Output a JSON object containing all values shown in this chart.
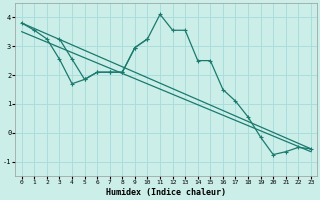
{
  "xlabel": "Humidex (Indice chaleur)",
  "background_color": "#cceee8",
  "grid_color": "#aadddd",
  "line_color": "#1a7a6e",
  "x_ticks": [
    0,
    1,
    2,
    3,
    4,
    5,
    6,
    7,
    8,
    9,
    10,
    11,
    12,
    13,
    14,
    15,
    16,
    17,
    18,
    19,
    20,
    21,
    22,
    23
  ],
  "y_ticks": [
    -1,
    0,
    1,
    2,
    3,
    4
  ],
  "xlim": [
    -0.5,
    23.5
  ],
  "ylim": [
    -1.5,
    4.5
  ],
  "jagged_x": [
    0,
    1,
    2,
    3,
    4,
    5,
    6,
    7,
    8,
    9,
    10,
    11,
    12,
    13,
    14,
    15,
    16,
    17,
    18,
    19,
    20,
    21,
    22,
    23
  ],
  "jagged_y": [
    3.8,
    3.55,
    3.25,
    2.55,
    1.7,
    1.85,
    2.1,
    2.1,
    2.1,
    2.95,
    3.25,
    4.1,
    3.55,
    3.55,
    2.5,
    2.5,
    1.5,
    1.1,
    0.55,
    -0.15,
    -0.75,
    -0.65,
    -0.5,
    -0.55
  ],
  "trend1_x": [
    0,
    23
  ],
  "trend1_y": [
    3.8,
    -0.55
  ],
  "trend2_x": [
    0,
    23
  ],
  "trend2_y": [
    3.5,
    -0.65
  ],
  "extra_x": [
    3,
    4,
    5,
    6,
    7,
    8,
    9,
    10
  ],
  "extra_y": [
    3.25,
    2.55,
    1.85,
    2.1,
    2.1,
    2.1,
    2.95,
    3.25
  ]
}
